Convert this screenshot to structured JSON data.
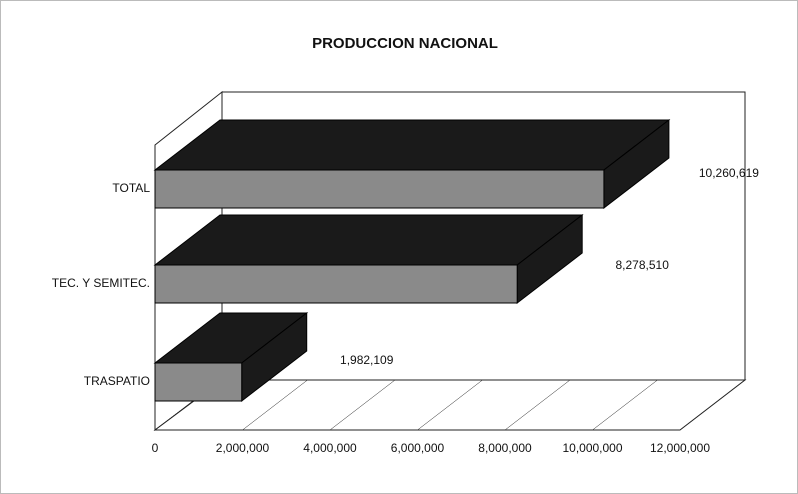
{
  "chart_data": {
    "type": "bar3d_horizontal",
    "title": "PRODUCCION NACIONAL",
    "categories": [
      "TOTAL",
      "TEC. Y SEMITEC.",
      "TRASPATIO"
    ],
    "values": [
      10260619,
      8278510,
      1982109
    ],
    "value_labels": [
      "10,260,619",
      "8,278,510",
      "1,982,109"
    ],
    "color": "#1a1a1a",
    "face_color": "#8a8a8a",
    "xlim": [
      0,
      12000000
    ],
    "xticks": [
      0,
      {
        "value": 2000000,
        "label": "2,000,000"
      },
      {
        "value": 4000000,
        "label": "4,000,000"
      },
      {
        "value": 6000000,
        "label": "6,000,000"
      },
      {
        "value": 8000000,
        "label": "8,000,000"
      },
      {
        "value": 10000000,
        "label": "10,000,000"
      },
      {
        "value": 12000000,
        "label": "12,000,000"
      }
    ]
  }
}
